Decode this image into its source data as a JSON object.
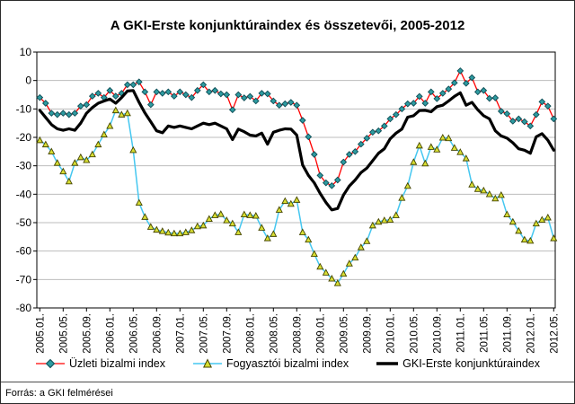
{
  "source_note": "Forrás: a GKI felmérései",
  "colors": {
    "background": "#FFFFFF",
    "plot_border": "#000000",
    "grid": "#BDBDBD",
    "business_line": "#FF0000",
    "business_marker_fill": "#2E9BA0",
    "business_marker_stroke": "#0E4C55",
    "consumer_line": "#45C7F0",
    "consumer_marker_fill": "#D8DF33",
    "consumer_marker_stroke": "#454500",
    "gki_line": "#000000"
  },
  "chart_data": {
    "type": "line",
    "title": "A GKI-Erste konjunktúraindex és összetevői, 2005-2012",
    "xlabel": "",
    "ylabel": "",
    "ylim": [
      -80,
      10
    ],
    "y_ticks": [
      10,
      0,
      -10,
      -20,
      -30,
      -40,
      -50,
      -60,
      -70,
      -80
    ],
    "grid": true,
    "legend_position": "bottom",
    "x_frequency": "monthly",
    "x_range": [
      "2005.01",
      "2012.05"
    ],
    "x_tick_labels": [
      "2005.01.",
      "2005.05.",
      "2005.09.",
      "2006.01.",
      "2006.05.",
      "2006.09.",
      "2007.01.",
      "2007.05.",
      "2007.09.",
      "2008.01.",
      "2008.05.",
      "2008.09.",
      "2009.01.",
      "2009.05.",
      "2009.09.",
      "2010.01.",
      "2010.05.",
      "2010.09.",
      "2011.01.",
      "2011.05.",
      "2011.09.",
      "2012.01.",
      "2012.05."
    ],
    "series": [
      {
        "name": "Üzleti bizalmi index",
        "marker": "diamond",
        "line_width": 1.3,
        "values": [
          -6,
          -8,
          -11.5,
          -12,
          -11.5,
          -12,
          -11.5,
          -9,
          -8.5,
          -5.5,
          -4.5,
          -6,
          -3.5,
          -5.5,
          -4.5,
          -1.5,
          -1.5,
          -0.5,
          -4,
          -8.5,
          -4,
          -4.5,
          -4,
          -5.5,
          -4,
          -5,
          -6,
          -3.5,
          -1.5,
          -4,
          -3.5,
          -4.7,
          -5,
          -10.3,
          -5,
          -6.1,
          -5.6,
          -7.2,
          -4.5,
          -4.7,
          -7.2,
          -8.7,
          -8.2,
          -7.7,
          -8.7,
          -14,
          -19.8,
          -26,
          -33.4,
          -36,
          -37,
          -35,
          -28.7,
          -26,
          -25,
          -22.4,
          -20.3,
          -18.2,
          -17.7,
          -16,
          -13.5,
          -12,
          -10,
          -8.2,
          -8,
          -5.6,
          -8,
          -4,
          -6.4,
          -4.5,
          -3,
          -0.8,
          3.4,
          -1,
          1,
          -4,
          -3.5,
          -6.3,
          -6.1,
          -10.8,
          -11.7,
          -14.3,
          -13.5,
          -14.5,
          -16,
          -12,
          -7.5,
          -9,
          -13.5
        ]
      },
      {
        "name": "Fogyasztói bizalmi index",
        "marker": "triangle",
        "line_width": 1.5,
        "values": [
          -21,
          -22.5,
          -25,
          -29,
          -32,
          -35.5,
          -29,
          -27,
          -28,
          -26,
          -22.5,
          -19,
          -16,
          -10.5,
          -12,
          -11.5,
          -24.5,
          -43,
          -48,
          -51.5,
          -52.5,
          -53,
          -53.5,
          -53.8,
          -53.8,
          -53.4,
          -52.7,
          -51.3,
          -51,
          -48.7,
          -47.4,
          -47,
          -49.2,
          -50.3,
          -53.4,
          -47.1,
          -47.4,
          -47.6,
          -51.8,
          -55.5,
          -54,
          -45.5,
          -42.4,
          -43.4,
          -42,
          -53.4,
          -56,
          -61,
          -65.5,
          -67.6,
          -69.7,
          -71.3,
          -68,
          -64.4,
          -62.3,
          -58.7,
          -56.5,
          -51,
          -49.7,
          -49.2,
          -49,
          -47.4,
          -41.3,
          -37.1,
          -28.7,
          -22.9,
          -29.2,
          -23.4,
          -24.3,
          -20.1,
          -20.3,
          -23.7,
          -25.2,
          -27.4,
          -36.6,
          -38.2,
          -38.7,
          -40,
          -41.5,
          -40.3,
          -47.1,
          -49.7,
          -52.9,
          -56,
          -56.4,
          -50.3,
          -49,
          -48.2,
          -55.5
        ]
      },
      {
        "name": "GKI-Erste konjunktúraindex",
        "marker": "none",
        "line_width": 3.2,
        "values": [
          -10.5,
          -13,
          -15.5,
          -17,
          -17.5,
          -17,
          -17.5,
          -15,
          -11.5,
          -9.5,
          -8,
          -7.2,
          -6.5,
          -8,
          -6,
          -3.7,
          -3.5,
          -7.7,
          -11.4,
          -14.5,
          -17.7,
          -18.4,
          -16,
          -16.5,
          -16,
          -16.5,
          -17,
          -16,
          -15,
          -15.5,
          -15,
          -16,
          -17,
          -20.8,
          -17.1,
          -18,
          -19.2,
          -19.5,
          -18.5,
          -22.4,
          -18.2,
          -17.5,
          -17,
          -17.1,
          -19.2,
          -29.7,
          -33.4,
          -36,
          -39.7,
          -42.9,
          -45.5,
          -45,
          -40.3,
          -37.1,
          -35,
          -32.4,
          -30.8,
          -28.2,
          -25.6,
          -24,
          -20.5,
          -18.5,
          -17.1,
          -12.9,
          -12.4,
          -10.6,
          -10.5,
          -11,
          -9.2,
          -8.7,
          -7.2,
          -5.6,
          -4.3,
          -8.7,
          -7.7,
          -10.3,
          -12.4,
          -13.5,
          -17.7,
          -19.5,
          -20.3,
          -21.9,
          -24,
          -24.5,
          -25.6,
          -19.8,
          -18.7,
          -21,
          -24.5
        ]
      }
    ]
  }
}
